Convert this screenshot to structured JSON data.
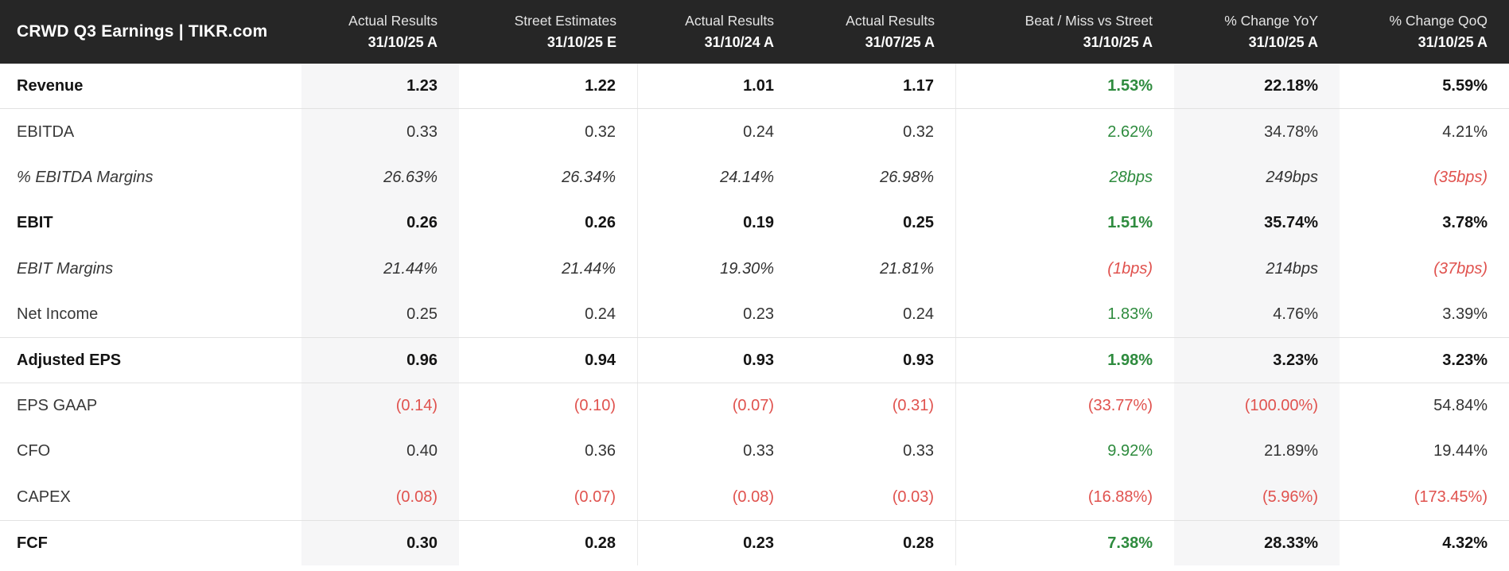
{
  "title": "CRWD Q3 Earnings | TIKR.com",
  "colors": {
    "header_bg": "#262626",
    "band_bg": "#f6f6f7",
    "green": "#2e8b3e",
    "red": "#e0524e",
    "line": "#e2e2e2",
    "text": "#333333",
    "text_bold": "#141414"
  },
  "columns": [
    {
      "line1": "Actual Results",
      "line2": "31/10/25 A"
    },
    {
      "line1": "Street Estimates",
      "line2": "31/10/25 E"
    },
    {
      "line1": "Actual Results",
      "line2": "31/10/24 A"
    },
    {
      "line1": "Actual Results",
      "line2": "31/07/25 A"
    },
    {
      "line1": "Beat / Miss vs Street",
      "line2": "31/10/25 A"
    },
    {
      "line1": "% Change YoY",
      "line2": "31/10/25 A"
    },
    {
      "line1": "% Change QoQ",
      "line2": "31/10/25 A"
    }
  ],
  "rows": [
    {
      "label": "Revenue",
      "bold": true,
      "italic": false,
      "separators": [
        "bottom"
      ],
      "values": [
        {
          "t": "1.23"
        },
        {
          "t": "1.22"
        },
        {
          "t": "1.01"
        },
        {
          "t": "1.17"
        },
        {
          "t": "1.53%",
          "c": "green"
        },
        {
          "t": "22.18%"
        },
        {
          "t": "5.59%"
        }
      ]
    },
    {
      "label": "EBITDA",
      "bold": false,
      "italic": false,
      "separators": [],
      "values": [
        {
          "t": "0.33"
        },
        {
          "t": "0.32"
        },
        {
          "t": "0.24"
        },
        {
          "t": "0.32"
        },
        {
          "t": "2.62%",
          "c": "green"
        },
        {
          "t": "34.78%"
        },
        {
          "t": "4.21%"
        }
      ]
    },
    {
      "label": "% EBITDA Margins",
      "bold": false,
      "italic": true,
      "separators": [],
      "values": [
        {
          "t": "26.63%"
        },
        {
          "t": "26.34%"
        },
        {
          "t": "24.14%"
        },
        {
          "t": "26.98%"
        },
        {
          "t": "28bps",
          "c": "green"
        },
        {
          "t": "249bps"
        },
        {
          "t": "(35bps)",
          "c": "red"
        }
      ]
    },
    {
      "label": "EBIT",
      "bold": true,
      "italic": false,
      "separators": [],
      "values": [
        {
          "t": "0.26"
        },
        {
          "t": "0.26"
        },
        {
          "t": "0.19"
        },
        {
          "t": "0.25"
        },
        {
          "t": "1.51%",
          "c": "green"
        },
        {
          "t": "35.74%"
        },
        {
          "t": "3.78%"
        }
      ]
    },
    {
      "label": "EBIT Margins",
      "bold": false,
      "italic": true,
      "separators": [],
      "values": [
        {
          "t": "21.44%"
        },
        {
          "t": "21.44%"
        },
        {
          "t": "19.30%"
        },
        {
          "t": "21.81%"
        },
        {
          "t": "(1bps)",
          "c": "red"
        },
        {
          "t": "214bps"
        },
        {
          "t": "(37bps)",
          "c": "red"
        }
      ]
    },
    {
      "label": "Net Income",
      "bold": false,
      "italic": false,
      "separators": [],
      "values": [
        {
          "t": "0.25"
        },
        {
          "t": "0.24"
        },
        {
          "t": "0.23"
        },
        {
          "t": "0.24"
        },
        {
          "t": "1.83%",
          "c": "green"
        },
        {
          "t": "4.76%"
        },
        {
          "t": "3.39%"
        }
      ]
    },
    {
      "label": "Adjusted EPS",
      "bold": true,
      "italic": false,
      "separators": [
        "top",
        "bottom"
      ],
      "values": [
        {
          "t": "0.96"
        },
        {
          "t": "0.94"
        },
        {
          "t": "0.93"
        },
        {
          "t": "0.93"
        },
        {
          "t": "1.98%",
          "c": "green"
        },
        {
          "t": "3.23%"
        },
        {
          "t": "3.23%"
        }
      ]
    },
    {
      "label": "EPS GAAP",
      "bold": false,
      "italic": false,
      "separators": [],
      "values": [
        {
          "t": "(0.14)",
          "c": "red"
        },
        {
          "t": "(0.10)",
          "c": "red"
        },
        {
          "t": "(0.07)",
          "c": "red"
        },
        {
          "t": "(0.31)",
          "c": "red"
        },
        {
          "t": "(33.77%)",
          "c": "red"
        },
        {
          "t": "(100.00%)",
          "c": "red"
        },
        {
          "t": "54.84%"
        }
      ]
    },
    {
      "label": "CFO",
      "bold": false,
      "italic": false,
      "separators": [],
      "values": [
        {
          "t": "0.40"
        },
        {
          "t": "0.36"
        },
        {
          "t": "0.33"
        },
        {
          "t": "0.33"
        },
        {
          "t": "9.92%",
          "c": "green"
        },
        {
          "t": "21.89%"
        },
        {
          "t": "19.44%"
        }
      ]
    },
    {
      "label": "CAPEX",
      "bold": false,
      "italic": false,
      "separators": [],
      "values": [
        {
          "t": "(0.08)",
          "c": "red"
        },
        {
          "t": "(0.07)",
          "c": "red"
        },
        {
          "t": "(0.08)",
          "c": "red"
        },
        {
          "t": "(0.03)",
          "c": "red"
        },
        {
          "t": "(16.88%)",
          "c": "red"
        },
        {
          "t": "(5.96%)",
          "c": "red"
        },
        {
          "t": "(173.45%)",
          "c": "red"
        }
      ]
    },
    {
      "label": "FCF",
      "bold": true,
      "italic": false,
      "separators": [
        "top"
      ],
      "values": [
        {
          "t": "0.30"
        },
        {
          "t": "0.28"
        },
        {
          "t": "0.23"
        },
        {
          "t": "0.28"
        },
        {
          "t": "7.38%",
          "c": "green"
        },
        {
          "t": "28.33%"
        },
        {
          "t": "4.32%"
        }
      ]
    }
  ],
  "chart_data": {
    "type": "table",
    "title": "CRWD Q3 Earnings | TIKR.com",
    "columns": [
      "Actual Results 31/10/25 A",
      "Street Estimates 31/10/25 E",
      "Actual Results 31/10/24 A",
      "Actual Results 31/07/25 A",
      "Beat / Miss vs Street 31/10/25 A",
      "% Change YoY 31/10/25 A",
      "% Change QoQ 31/10/25 A"
    ],
    "row_labels": [
      "Revenue",
      "EBITDA",
      "% EBITDA Margins",
      "EBIT",
      "EBIT Margins",
      "Net Income",
      "Adjusted EPS",
      "EPS GAAP",
      "CFO",
      "CAPEX",
      "FCF"
    ],
    "cells": [
      [
        "1.23",
        "1.22",
        "1.01",
        "1.17",
        "1.53%",
        "22.18%",
        "5.59%"
      ],
      [
        "0.33",
        "0.32",
        "0.24",
        "0.32",
        "2.62%",
        "34.78%",
        "4.21%"
      ],
      [
        "26.63%",
        "26.34%",
        "24.14%",
        "26.98%",
        "28bps",
        "249bps",
        "(35bps)"
      ],
      [
        "0.26",
        "0.26",
        "0.19",
        "0.25",
        "1.51%",
        "35.74%",
        "3.78%"
      ],
      [
        "21.44%",
        "21.44%",
        "19.30%",
        "21.81%",
        "(1bps)",
        "214bps",
        "(37bps)"
      ],
      [
        "0.25",
        "0.24",
        "0.23",
        "0.24",
        "1.83%",
        "4.76%",
        "3.39%"
      ],
      [
        "0.96",
        "0.94",
        "0.93",
        "0.93",
        "1.98%",
        "3.23%",
        "3.23%"
      ],
      [
        "(0.14)",
        "(0.10)",
        "(0.07)",
        "(0.31)",
        "(33.77%)",
        "(100.00%)",
        "54.84%"
      ],
      [
        "0.40",
        "0.36",
        "0.33",
        "0.33",
        "9.92%",
        "21.89%",
        "19.44%"
      ],
      [
        "(0.08)",
        "(0.07)",
        "(0.08)",
        "(0.03)",
        "(16.88%)",
        "(5.96%)",
        "(173.45%)"
      ],
      [
        "0.30",
        "0.28",
        "0.23",
        "0.28",
        "7.38%",
        "28.33%",
        "4.32%"
      ]
    ]
  }
}
